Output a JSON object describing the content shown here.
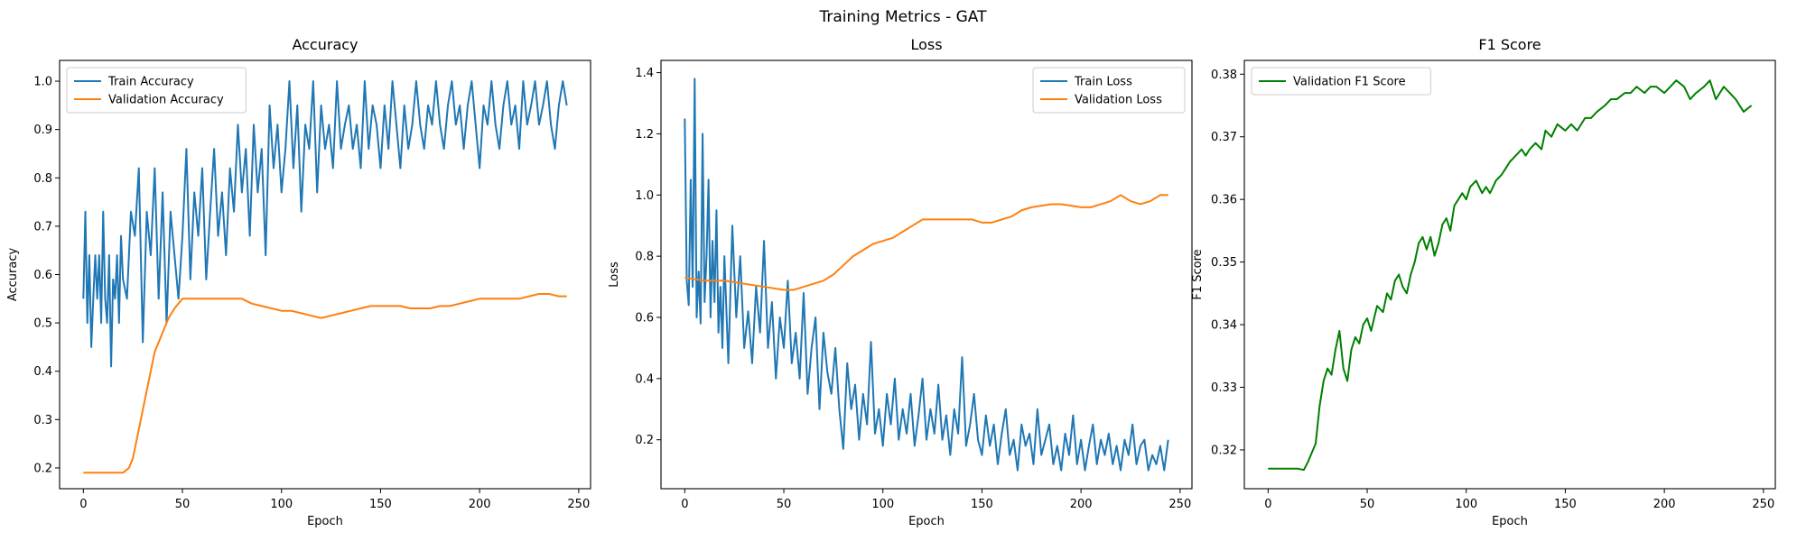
{
  "figure": {
    "title": "Training Metrics - GAT"
  },
  "chart_data": [
    {
      "type": "line",
      "title": "Accuracy",
      "xlabel": "Epoch",
      "ylabel": "Accuracy",
      "xlim": [
        -12,
        256
      ],
      "ylim": [
        0.157,
        1.043
      ],
      "xticks": [
        0,
        50,
        100,
        150,
        200,
        250
      ],
      "yticks": [
        0.2,
        0.3,
        0.4,
        0.5,
        0.6,
        0.7,
        0.8,
        0.9,
        1.0
      ],
      "ytick_labels": [
        "0.2",
        "0.3",
        "0.4",
        "0.5",
        "0.6",
        "0.7",
        "0.8",
        "0.9",
        "1.0"
      ],
      "legend": "upper-left",
      "grid": false,
      "series": [
        {
          "name": "Train Accuracy",
          "color": "#1f77b4",
          "x": [
            0,
            1,
            2,
            3,
            4,
            5,
            6,
            7,
            8,
            9,
            10,
            11,
            12,
            13,
            14,
            15,
            16,
            17,
            18,
            19,
            20,
            22,
            24,
            26,
            28,
            30,
            32,
            34,
            36,
            38,
            40,
            42,
            44,
            46,
            48,
            50,
            52,
            54,
            56,
            58,
            60,
            62,
            64,
            66,
            68,
            70,
            72,
            74,
            76,
            78,
            80,
            82,
            84,
            86,
            88,
            90,
            92,
            94,
            96,
            98,
            100,
            102,
            104,
            106,
            108,
            110,
            112,
            114,
            116,
            118,
            120,
            122,
            124,
            126,
            128,
            130,
            132,
            134,
            136,
            138,
            140,
            142,
            144,
            146,
            148,
            150,
            152,
            154,
            156,
            158,
            160,
            162,
            164,
            166,
            168,
            170,
            172,
            174,
            176,
            178,
            180,
            182,
            184,
            186,
            188,
            190,
            192,
            194,
            196,
            198,
            200,
            202,
            204,
            206,
            208,
            210,
            212,
            214,
            216,
            218,
            220,
            222,
            224,
            226,
            228,
            230,
            232,
            234,
            236,
            238,
            240,
            242,
            244
          ],
          "y": [
            0.55,
            0.73,
            0.5,
            0.64,
            0.45,
            0.55,
            0.64,
            0.55,
            0.64,
            0.5,
            0.73,
            0.55,
            0.5,
            0.64,
            0.41,
            0.59,
            0.55,
            0.64,
            0.5,
            0.68,
            0.59,
            0.55,
            0.73,
            0.68,
            0.82,
            0.46,
            0.73,
            0.64,
            0.82,
            0.55,
            0.77,
            0.5,
            0.73,
            0.64,
            0.55,
            0.68,
            0.86,
            0.59,
            0.77,
            0.68,
            0.82,
            0.59,
            0.73,
            0.86,
            0.68,
            0.77,
            0.64,
            0.82,
            0.73,
            0.91,
            0.77,
            0.86,
            0.68,
            0.91,
            0.77,
            0.86,
            0.64,
            0.95,
            0.82,
            0.91,
            0.77,
            0.86,
            1.0,
            0.82,
            0.95,
            0.73,
            0.91,
            0.86,
            1.0,
            0.77,
            0.95,
            0.86,
            0.91,
            0.82,
            1.0,
            0.86,
            0.91,
            0.95,
            0.86,
            0.91,
            0.82,
            1.0,
            0.86,
            0.95,
            0.91,
            0.82,
            0.95,
            0.86,
            1.0,
            0.91,
            0.82,
            0.95,
            0.86,
            0.91,
            1.0,
            0.91,
            0.86,
            0.95,
            0.91,
            1.0,
            0.91,
            0.86,
            0.95,
            1.0,
            0.91,
            0.95,
            0.86,
            0.95,
            1.0,
            0.91,
            0.82,
            0.95,
            0.91,
            1.0,
            0.91,
            0.86,
            0.95,
            1.0,
            0.91,
            0.95,
            0.86,
            1.0,
            0.91,
            0.95,
            1.0,
            0.91,
            0.95,
            1.0,
            0.91,
            0.86,
            0.95,
            1.0,
            0.95
          ]
        },
        {
          "name": "Validation Accuracy",
          "color": "#ff7f0e",
          "x": [
            0,
            5,
            10,
            15,
            20,
            23,
            25,
            27,
            30,
            33,
            36,
            40,
            43,
            46,
            48,
            50,
            55,
            60,
            65,
            70,
            75,
            80,
            85,
            90,
            95,
            100,
            105,
            110,
            115,
            120,
            125,
            130,
            135,
            140,
            145,
            150,
            155,
            160,
            165,
            170,
            175,
            180,
            185,
            190,
            195,
            200,
            205,
            210,
            215,
            220,
            225,
            230,
            235,
            240,
            244
          ],
          "y": [
            0.19,
            0.19,
            0.19,
            0.19,
            0.19,
            0.2,
            0.22,
            0.26,
            0.32,
            0.38,
            0.44,
            0.48,
            0.51,
            0.53,
            0.54,
            0.55,
            0.55,
            0.55,
            0.55,
            0.55,
            0.55,
            0.55,
            0.54,
            0.535,
            0.53,
            0.525,
            0.525,
            0.52,
            0.515,
            0.51,
            0.515,
            0.52,
            0.525,
            0.53,
            0.535,
            0.535,
            0.535,
            0.535,
            0.53,
            0.53,
            0.53,
            0.535,
            0.535,
            0.54,
            0.545,
            0.55,
            0.55,
            0.55,
            0.55,
            0.55,
            0.555,
            0.56,
            0.56,
            0.555,
            0.555
          ]
        }
      ]
    },
    {
      "type": "line",
      "title": "Loss",
      "xlabel": "Epoch",
      "ylabel": "Loss",
      "xlim": [
        -12,
        256
      ],
      "ylim": [
        0.04,
        1.44
      ],
      "xticks": [
        0,
        50,
        100,
        150,
        200,
        250
      ],
      "yticks": [
        0.2,
        0.4,
        0.6,
        0.8,
        1.0,
        1.2,
        1.4
      ],
      "ytick_labels": [
        "0.2",
        "0.4",
        "0.6",
        "0.8",
        "1.0",
        "1.2",
        "1.4"
      ],
      "legend": "upper-right",
      "grid": false,
      "series": [
        {
          "name": "Train Loss",
          "color": "#1f77b4",
          "x": [
            0,
            1,
            2,
            3,
            4,
            5,
            6,
            7,
            8,
            9,
            10,
            11,
            12,
            13,
            14,
            15,
            16,
            17,
            18,
            19,
            20,
            22,
            24,
            26,
            28,
            30,
            32,
            34,
            36,
            38,
            40,
            42,
            44,
            46,
            48,
            50,
            52,
            54,
            56,
            58,
            60,
            62,
            64,
            66,
            68,
            70,
            72,
            74,
            76,
            78,
            80,
            82,
            84,
            86,
            88,
            90,
            92,
            94,
            96,
            98,
            100,
            102,
            104,
            106,
            108,
            110,
            112,
            114,
            116,
            118,
            120,
            122,
            124,
            126,
            128,
            130,
            132,
            134,
            136,
            138,
            140,
            142,
            144,
            146,
            148,
            150,
            152,
            154,
            156,
            158,
            160,
            162,
            164,
            166,
            168,
            170,
            172,
            174,
            176,
            178,
            180,
            182,
            184,
            186,
            188,
            190,
            192,
            194,
            196,
            198,
            200,
            202,
            204,
            206,
            208,
            210,
            212,
            214,
            216,
            218,
            220,
            222,
            224,
            226,
            228,
            230,
            232,
            234,
            236,
            238,
            240,
            242,
            244
          ],
          "y": [
            1.25,
            0.72,
            0.64,
            1.05,
            0.7,
            1.38,
            0.6,
            0.75,
            0.58,
            1.2,
            0.65,
            0.8,
            1.05,
            0.6,
            0.85,
            0.65,
            0.95,
            0.55,
            0.7,
            0.5,
            0.8,
            0.45,
            0.9,
            0.6,
            0.8,
            0.5,
            0.62,
            0.45,
            0.7,
            0.55,
            0.85,
            0.5,
            0.65,
            0.4,
            0.6,
            0.5,
            0.72,
            0.45,
            0.55,
            0.4,
            0.68,
            0.35,
            0.5,
            0.6,
            0.3,
            0.55,
            0.42,
            0.35,
            0.5,
            0.3,
            0.17,
            0.45,
            0.3,
            0.38,
            0.2,
            0.35,
            0.25,
            0.52,
            0.22,
            0.3,
            0.18,
            0.35,
            0.25,
            0.4,
            0.2,
            0.3,
            0.22,
            0.35,
            0.18,
            0.28,
            0.4,
            0.2,
            0.3,
            0.22,
            0.38,
            0.2,
            0.28,
            0.15,
            0.3,
            0.22,
            0.47,
            0.18,
            0.25,
            0.35,
            0.2,
            0.15,
            0.28,
            0.18,
            0.25,
            0.12,
            0.22,
            0.3,
            0.15,
            0.2,
            0.1,
            0.25,
            0.18,
            0.22,
            0.12,
            0.3,
            0.15,
            0.2,
            0.25,
            0.12,
            0.18,
            0.1,
            0.22,
            0.15,
            0.28,
            0.12,
            0.2,
            0.1,
            0.18,
            0.25,
            0.12,
            0.2,
            0.15,
            0.22,
            0.12,
            0.18,
            0.1,
            0.2,
            0.15,
            0.25,
            0.12,
            0.18,
            0.2,
            0.1,
            0.15,
            0.12,
            0.18,
            0.1,
            0.2
          ]
        },
        {
          "name": "Validation Loss",
          "color": "#ff7f0e",
          "x": [
            0,
            10,
            20,
            30,
            40,
            50,
            55,
            60,
            65,
            70,
            75,
            80,
            85,
            90,
            95,
            100,
            105,
            110,
            115,
            120,
            125,
            130,
            135,
            140,
            145,
            150,
            155,
            160,
            165,
            170,
            175,
            180,
            185,
            190,
            195,
            200,
            205,
            210,
            215,
            220,
            225,
            230,
            235,
            240,
            244
          ],
          "y": [
            0.73,
            0.72,
            0.72,
            0.71,
            0.7,
            0.69,
            0.69,
            0.7,
            0.71,
            0.72,
            0.74,
            0.77,
            0.8,
            0.82,
            0.84,
            0.85,
            0.86,
            0.88,
            0.9,
            0.92,
            0.92,
            0.92,
            0.92,
            0.92,
            0.92,
            0.91,
            0.91,
            0.92,
            0.93,
            0.95,
            0.96,
            0.965,
            0.97,
            0.97,
            0.965,
            0.96,
            0.96,
            0.97,
            0.98,
            1.0,
            0.98,
            0.97,
            0.98,
            1.0,
            1.0
          ]
        }
      ]
    },
    {
      "type": "line",
      "title": "F1 Score",
      "xlabel": "Epoch",
      "ylabel": "F1 Score",
      "xlim": [
        -12,
        256
      ],
      "ylim": [
        0.3138,
        0.3822
      ],
      "xticks": [
        0,
        50,
        100,
        150,
        200,
        250
      ],
      "yticks": [
        0.32,
        0.33,
        0.34,
        0.35,
        0.36,
        0.37,
        0.38
      ],
      "ytick_labels": [
        "0.32",
        "0.33",
        "0.34",
        "0.35",
        "0.36",
        "0.37",
        "0.38"
      ],
      "legend": "upper-left",
      "grid": false,
      "series": [
        {
          "name": "Validation F1 Score",
          "color": "#008000",
          "x": [
            0,
            5,
            10,
            15,
            18,
            20,
            22,
            24,
            26,
            28,
            30,
            32,
            34,
            36,
            38,
            40,
            42,
            44,
            46,
            48,
            50,
            52,
            55,
            58,
            60,
            62,
            64,
            66,
            68,
            70,
            72,
            74,
            76,
            78,
            80,
            82,
            84,
            86,
            88,
            90,
            92,
            94,
            96,
            98,
            100,
            102,
            105,
            108,
            110,
            112,
            115,
            118,
            120,
            122,
            125,
            128,
            130,
            132,
            135,
            138,
            140,
            143,
            146,
            150,
            153,
            156,
            160,
            163,
            166,
            170,
            173,
            176,
            180,
            183,
            186,
            190,
            193,
            196,
            200,
            203,
            206,
            210,
            213,
            216,
            220,
            223,
            226,
            230,
            233,
            236,
            240,
            242,
            244
          ],
          "y": [
            0.317,
            0.317,
            0.317,
            0.317,
            0.3168,
            0.318,
            0.3195,
            0.321,
            0.327,
            0.331,
            0.333,
            0.332,
            0.336,
            0.339,
            0.333,
            0.331,
            0.336,
            0.338,
            0.337,
            0.34,
            0.341,
            0.339,
            0.343,
            0.342,
            0.345,
            0.344,
            0.347,
            0.348,
            0.346,
            0.345,
            0.348,
            0.35,
            0.353,
            0.354,
            0.352,
            0.354,
            0.351,
            0.353,
            0.356,
            0.357,
            0.355,
            0.359,
            0.36,
            0.361,
            0.36,
            0.362,
            0.363,
            0.361,
            0.362,
            0.361,
            0.363,
            0.364,
            0.365,
            0.366,
            0.367,
            0.368,
            0.367,
            0.368,
            0.369,
            0.368,
            0.371,
            0.37,
            0.372,
            0.371,
            0.372,
            0.371,
            0.373,
            0.373,
            0.374,
            0.375,
            0.376,
            0.376,
            0.377,
            0.377,
            0.378,
            0.377,
            0.378,
            0.378,
            0.377,
            0.378,
            0.379,
            0.378,
            0.376,
            0.377,
            0.378,
            0.379,
            0.376,
            0.378,
            0.377,
            0.376,
            0.374,
            0.3745,
            0.375
          ]
        }
      ]
    }
  ]
}
